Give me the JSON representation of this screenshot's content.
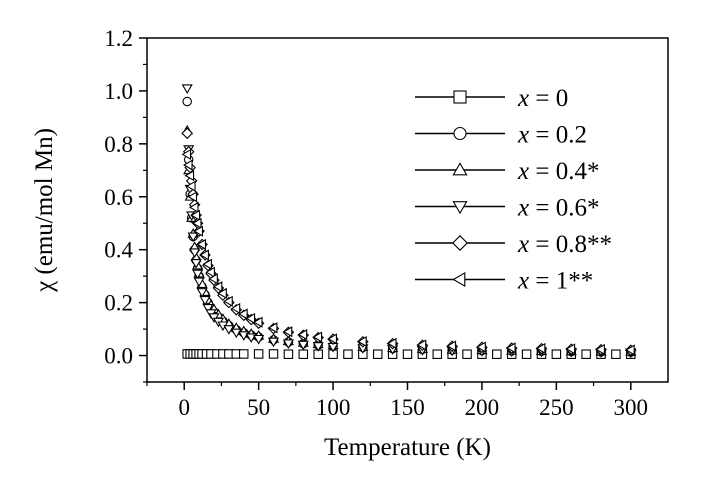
{
  "chart_data": {
    "type": "scatter",
    "title": "",
    "xlabel": "Temperature (K)",
    "ylabel": "χ (emu/mol Mn)",
    "xlim": [
      -25,
      325
    ],
    "ylim": [
      -0.1,
      1.2
    ],
    "xticks": [
      0,
      50,
      100,
      150,
      200,
      250,
      300
    ],
    "yticks": [
      0.0,
      0.2,
      0.4,
      0.6,
      0.8,
      1.0,
      1.2
    ],
    "ytick_labels": [
      "0.0",
      "0.2",
      "0.4",
      "0.6",
      "0.8",
      "1.0",
      "1.2"
    ],
    "grid": false,
    "legend_position": "top-right",
    "series": [
      {
        "name": "x = 0",
        "label_var": "x",
        "label_rest": " = 0",
        "marker": "square",
        "x": [
          2,
          4,
          6,
          8,
          10,
          12,
          15,
          18,
          22,
          26,
          30,
          35,
          40,
          50,
          60,
          70,
          80,
          90,
          100,
          110,
          120,
          130,
          140,
          150,
          160,
          170,
          180,
          190,
          200,
          210,
          220,
          230,
          240,
          250,
          260,
          270,
          280,
          290,
          300
        ],
        "y": [
          0.006,
          0.006,
          0.006,
          0.006,
          0.006,
          0.006,
          0.006,
          0.006,
          0.006,
          0.006,
          0.006,
          0.006,
          0.006,
          0.006,
          0.006,
          0.005,
          0.005,
          0.005,
          0.005,
          0.005,
          0.005,
          0.005,
          0.005,
          0.005,
          0.005,
          0.005,
          0.005,
          0.005,
          0.005,
          0.005,
          0.005,
          0.005,
          0.005,
          0.005,
          0.005,
          0.005,
          0.005,
          0.005,
          0.005
        ]
      },
      {
        "name": "x = 0.2",
        "label_var": "x",
        "label_rest": " = 0.2",
        "marker": "circle",
        "x": [
          2,
          3,
          4,
          5,
          6,
          7,
          8,
          9,
          10,
          12,
          14,
          16,
          18,
          20,
          23,
          26,
          30,
          35,
          40,
          45,
          50,
          60,
          70,
          80,
          90,
          100,
          120,
          140,
          160,
          180,
          200,
          220,
          240,
          260,
          280,
          300
        ],
        "y": [
          0.96,
          0.74,
          0.61,
          0.52,
          0.45,
          0.4,
          0.36,
          0.33,
          0.3,
          0.26,
          0.23,
          0.2,
          0.18,
          0.165,
          0.145,
          0.13,
          0.113,
          0.098,
          0.086,
          0.077,
          0.07,
          0.059,
          0.051,
          0.045,
          0.04,
          0.036,
          0.031,
          0.026,
          0.023,
          0.021,
          0.019,
          0.017,
          0.016,
          0.015,
          0.014,
          0.013
        ]
      },
      {
        "name": "x = 0.4*",
        "label_var": "x",
        "label_rest": " = 0.4*",
        "marker": "triangle-up",
        "x": [
          2,
          3,
          4,
          5,
          6,
          7,
          8,
          9,
          10,
          12,
          14,
          16,
          18,
          20,
          23,
          26,
          30,
          35,
          40,
          45,
          50,
          60,
          70,
          80,
          90,
          100,
          120,
          140,
          160,
          180,
          200,
          220,
          240,
          260,
          280,
          300
        ],
        "y": [
          0.85,
          0.7,
          0.6,
          0.52,
          0.46,
          0.41,
          0.37,
          0.34,
          0.31,
          0.27,
          0.24,
          0.21,
          0.19,
          0.175,
          0.155,
          0.138,
          0.12,
          0.104,
          0.092,
          0.082,
          0.075,
          0.063,
          0.054,
          0.048,
          0.043,
          0.039,
          0.033,
          0.028,
          0.025,
          0.022,
          0.02,
          0.018,
          0.017,
          0.016,
          0.015,
          0.014
        ]
      },
      {
        "name": "x = 0.6*",
        "label_var": "x",
        "label_rest": " = 0.6*",
        "marker": "triangle-down",
        "x": [
          2,
          3,
          4,
          5,
          6,
          7,
          8,
          9,
          10,
          12,
          14,
          16,
          18,
          20,
          23,
          26,
          30,
          35,
          40,
          45,
          50,
          60,
          70,
          80,
          90,
          100,
          120,
          140,
          160,
          180,
          200,
          220,
          240,
          260,
          280,
          300
        ],
        "y": [
          1.01,
          0.78,
          0.63,
          0.53,
          0.45,
          0.39,
          0.35,
          0.31,
          0.28,
          0.24,
          0.21,
          0.18,
          0.16,
          0.145,
          0.128,
          0.114,
          0.1,
          0.087,
          0.077,
          0.069,
          0.063,
          0.053,
          0.046,
          0.041,
          0.036,
          0.033,
          0.028,
          0.024,
          0.021,
          0.019,
          0.017,
          0.016,
          0.015,
          0.014,
          0.013,
          0.012
        ]
      },
      {
        "name": "x = 0.8**",
        "label_var": "x",
        "label_rest": " = 0.8**",
        "marker": "diamond",
        "x": [
          2,
          3,
          4,
          5,
          6,
          7,
          8,
          9,
          10,
          12,
          14,
          16,
          18,
          20,
          23,
          26,
          30,
          35,
          40,
          45,
          50,
          60,
          70,
          80,
          90,
          100,
          120,
          140,
          160,
          180,
          200,
          220,
          240,
          260,
          280,
          300
        ],
        "y": [
          0.84,
          0.77,
          0.71,
          0.66,
          0.61,
          0.57,
          0.53,
          0.5,
          0.47,
          0.42,
          0.38,
          0.34,
          0.31,
          0.285,
          0.255,
          0.228,
          0.2,
          0.173,
          0.152,
          0.136,
          0.122,
          0.102,
          0.088,
          0.077,
          0.068,
          0.062,
          0.052,
          0.045,
          0.039,
          0.035,
          0.031,
          0.028,
          0.026,
          0.024,
          0.022,
          0.02
        ]
      },
      {
        "name": "x = 1**",
        "label_var": "x",
        "label_rest": " = 1**",
        "marker": "triangle-left",
        "x": [
          2,
          3,
          4,
          5,
          6,
          7,
          8,
          9,
          10,
          12,
          14,
          16,
          18,
          20,
          23,
          26,
          30,
          35,
          40,
          45,
          50,
          60,
          70,
          80,
          90,
          100,
          120,
          140,
          160,
          180,
          200,
          220,
          240,
          260,
          280,
          300
        ],
        "y": [
          0.76,
          0.72,
          0.68,
          0.64,
          0.6,
          0.56,
          0.53,
          0.5,
          0.47,
          0.42,
          0.38,
          0.345,
          0.315,
          0.29,
          0.26,
          0.235,
          0.205,
          0.178,
          0.157,
          0.14,
          0.126,
          0.105,
          0.09,
          0.079,
          0.07,
          0.063,
          0.053,
          0.046,
          0.04,
          0.036,
          0.032,
          0.029,
          0.027,
          0.025,
          0.023,
          0.021
        ]
      }
    ]
  }
}
